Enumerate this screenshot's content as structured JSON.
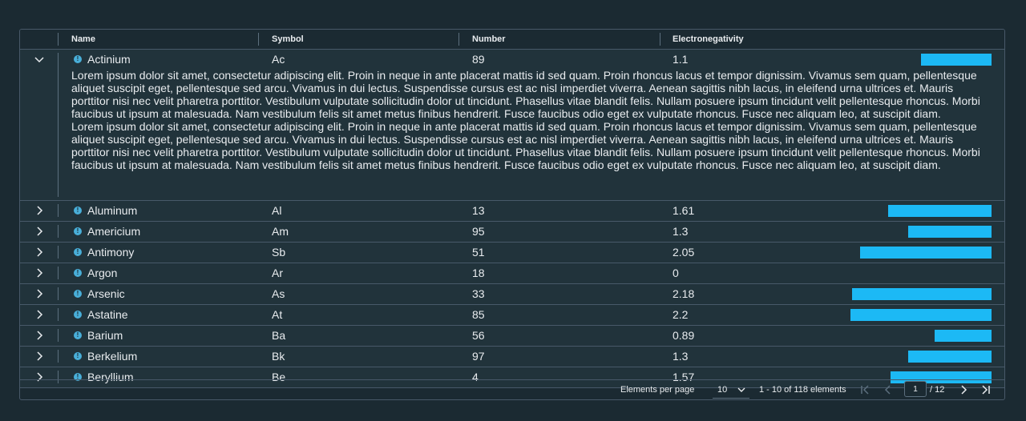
{
  "columns": {
    "name": "Name",
    "symbol": "Symbol",
    "number": "Number",
    "electronegativity": "Electronegativity"
  },
  "rows": [
    {
      "name": "Actinium",
      "symbol": "Ac",
      "number": "89",
      "en": "1.1",
      "en_value": 1.1,
      "expanded": true
    },
    {
      "name": "Aluminum",
      "symbol": "Al",
      "number": "13",
      "en": "1.61",
      "en_value": 1.61
    },
    {
      "name": "Americium",
      "symbol": "Am",
      "number": "95",
      "en": "1.3",
      "en_value": 1.3
    },
    {
      "name": "Antimony",
      "symbol": "Sb",
      "number": "51",
      "en": "2.05",
      "en_value": 2.05
    },
    {
      "name": "Argon",
      "symbol": "Ar",
      "number": "18",
      "en": "0",
      "en_value": 0
    },
    {
      "name": "Arsenic",
      "symbol": "As",
      "number": "33",
      "en": "2.18",
      "en_value": 2.18
    },
    {
      "name": "Astatine",
      "symbol": "At",
      "number": "85",
      "en": "2.2",
      "en_value": 2.2
    },
    {
      "name": "Barium",
      "symbol": "Ba",
      "number": "56",
      "en": "0.89",
      "en_value": 0.89
    },
    {
      "name": "Berkelium",
      "symbol": "Bk",
      "number": "97",
      "en": "1.3",
      "en_value": 1.3
    },
    {
      "name": "Beryllium",
      "symbol": "Be",
      "number": "4",
      "en": "1.57",
      "en_value": 1.57
    }
  ],
  "detail": {
    "paragraph1": "Lorem ipsum dolor sit amet, consectetur adipiscing elit. Proin in neque in ante placerat mattis id sed quam. Proin rhoncus lacus et tempor dignissim. Vivamus sem quam, pellentesque aliquet suscipit eget, pellentesque sed arcu. Vivamus in dui lectus. Suspendisse cursus est ac nisl imperdiet viverra. Aenean sagittis nibh lacus, in eleifend urna ultrices et. Mauris porttitor nisi nec velit pharetra porttitor. Vestibulum vulputate sollicitudin dolor ut tincidunt. Phasellus vitae blandit felis. Nullam posuere ipsum tincidunt velit pellentesque rhoncus. Morbi faucibus ut ipsum at malesuada. Nam vestibulum felis sit amet metus finibus hendrerit. Fusce faucibus odio eget ex vulputate rhoncus. Fusce nec aliquam leo, at suscipit diam.",
    "paragraph2": "Lorem ipsum dolor sit amet, consectetur adipiscing elit. Proin in neque in ante placerat mattis id sed quam. Proin rhoncus lacus et tempor dignissim. Vivamus sem quam, pellentesque aliquet suscipit eget, pellentesque sed arcu. Vivamus in dui lectus. Suspendisse cursus est ac nisl imperdiet viverra. Aenean sagittis nibh lacus, in eleifend urna ultrices et. Mauris porttitor nisi nec velit pharetra porttitor. Vestibulum vulputate sollicitudin dolor ut tincidunt. Phasellus vitae blandit felis. Nullam posuere ipsum tincidunt velit pellentesque rhoncus. Morbi faucibus ut ipsum at malesuada. Nam vestibulum felis sit amet metus finibus hendrerit. Fusce faucibus odio eget ex vulputate rhoncus. Fusce nec aliquam leo, at suscipit diam."
  },
  "info_icon_glyph": "!",
  "bar_max_value": 2.2,
  "colors": {
    "bar": "#1cb9f5",
    "info": "#49afd9",
    "background": "#1b2a32",
    "row": "#21333b",
    "border": "#485969"
  },
  "footer": {
    "per_page_label": "Elements per page",
    "per_page_value": "10",
    "range_text": "1 - 10 of 118 elements",
    "current_page": "1",
    "total_pages": "/ 12"
  }
}
